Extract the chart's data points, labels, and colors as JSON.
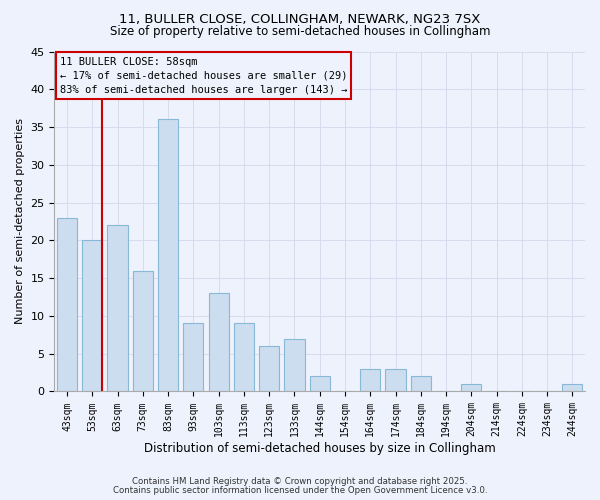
{
  "title1": "11, BULLER CLOSE, COLLINGHAM, NEWARK, NG23 7SX",
  "title2": "Size of property relative to semi-detached houses in Collingham",
  "xlabel": "Distribution of semi-detached houses by size in Collingham",
  "ylabel": "Number of semi-detached properties",
  "bar_labels": [
    "43sqm",
    "53sqm",
    "63sqm",
    "73sqm",
    "83sqm",
    "93sqm",
    "103sqm",
    "113sqm",
    "123sqm",
    "133sqm",
    "144sqm",
    "154sqm",
    "164sqm",
    "174sqm",
    "184sqm",
    "194sqm",
    "204sqm",
    "214sqm",
    "224sqm",
    "234sqm",
    "244sqm"
  ],
  "bar_values": [
    23,
    20,
    22,
    16,
    36,
    9,
    13,
    9,
    6,
    7,
    2,
    0,
    3,
    3,
    2,
    0,
    1,
    0,
    0,
    0,
    1
  ],
  "bar_color": "#ccddf0",
  "bar_edge_color": "#88b8d8",
  "vline_color": "#cc0000",
  "annotation_title": "11 BULLER CLOSE: 58sqm",
  "annotation_line1": "← 17% of semi-detached houses are smaller (29)",
  "annotation_line2": "83% of semi-detached houses are larger (143) →",
  "annotation_box_color": "#cc0000",
  "ylim": [
    0,
    45
  ],
  "yticks": [
    0,
    5,
    10,
    15,
    20,
    25,
    30,
    35,
    40,
    45
  ],
  "footer1": "Contains HM Land Registry data © Crown copyright and database right 2025.",
  "footer2": "Contains public sector information licensed under the Open Government Licence v3.0.",
  "bg_color": "#eef2fc",
  "grid_color": "#d0d8ec"
}
